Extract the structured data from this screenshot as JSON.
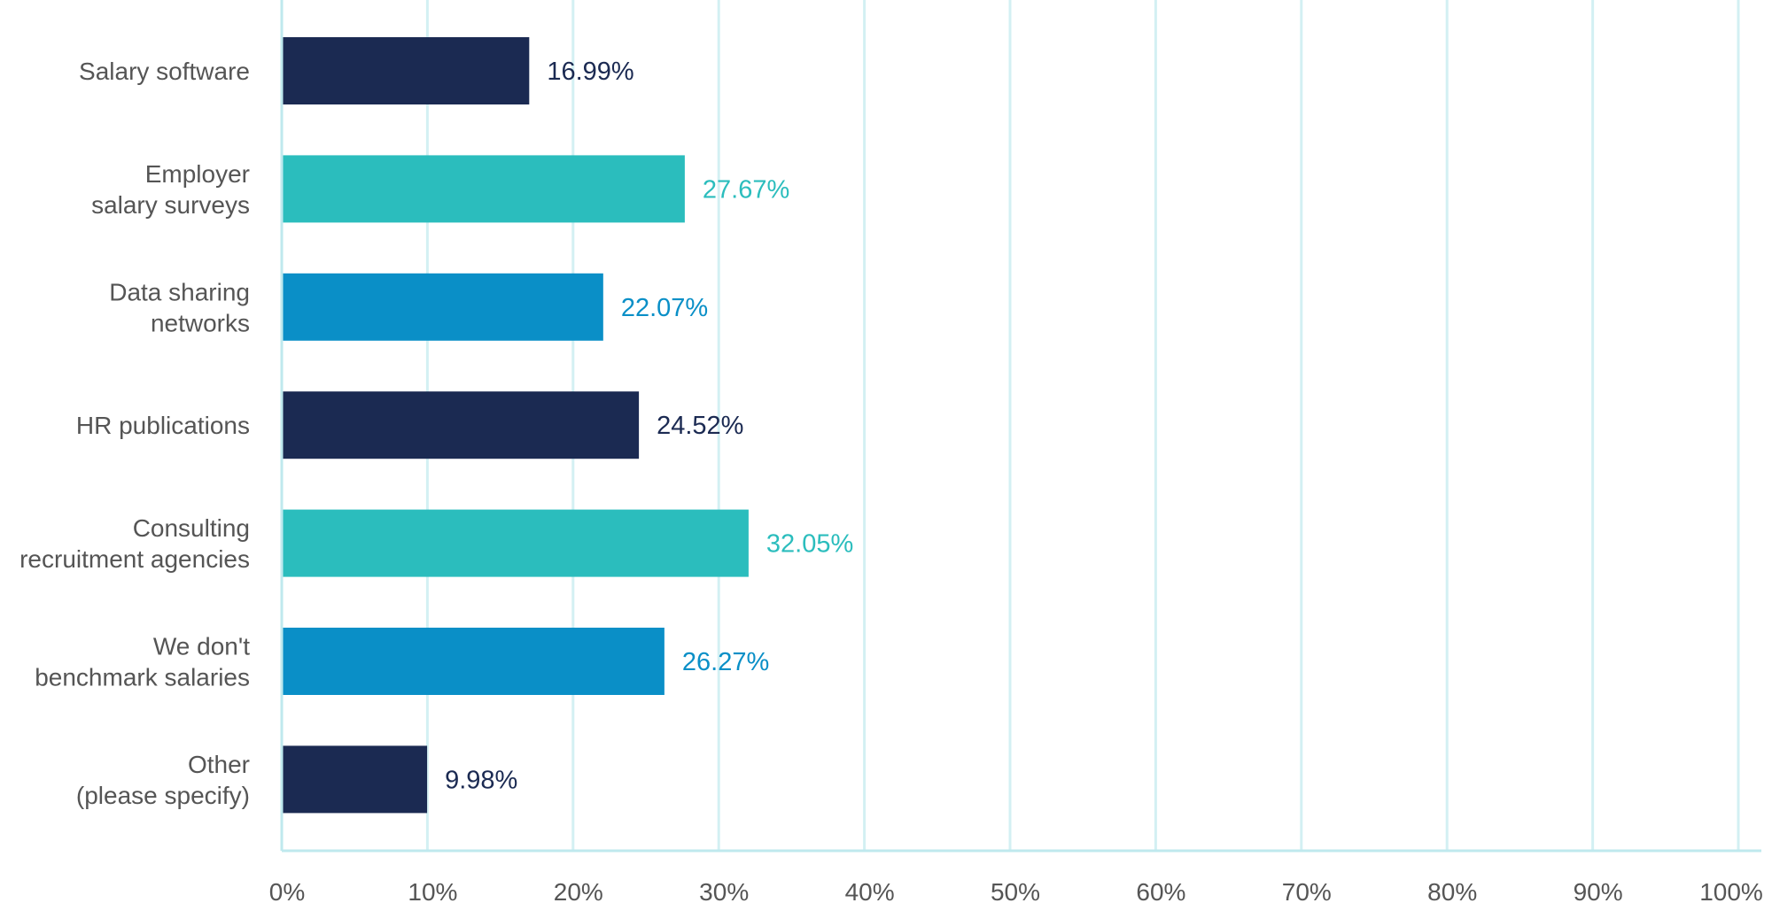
{
  "chart_data": {
    "type": "bar",
    "orientation": "horizontal",
    "categories": [
      [
        "Salary software"
      ],
      [
        "Employer",
        "salary surveys"
      ],
      [
        "Data sharing",
        "networks"
      ],
      [
        "HR publications"
      ],
      [
        "Consulting",
        "recruitment agencies"
      ],
      [
        "We don't",
        "benchmark salaries"
      ],
      [
        "Other",
        "(please specify)"
      ]
    ],
    "values": [
      16.99,
      27.67,
      22.07,
      24.52,
      32.05,
      26.27,
      9.98
    ],
    "value_labels": [
      "16.99%",
      "27.67%",
      "22.07%",
      "24.52%",
      "32.05%",
      "26.27%",
      "9.98%"
    ],
    "bar_colors": [
      "#1b2a52",
      "#2bbdbd",
      "#0a8fc7",
      "#1b2a52",
      "#2bbdbd",
      "#0a8fc7",
      "#1b2a52"
    ],
    "xlim": [
      0,
      100
    ],
    "x_ticks": [
      0,
      10,
      20,
      30,
      40,
      50,
      60,
      70,
      80,
      90,
      100
    ],
    "x_tick_labels": [
      "0%",
      "10%",
      "20%",
      "30%",
      "40%",
      "50%",
      "60%",
      "70%",
      "80%",
      "90%",
      "100%"
    ],
    "title": "",
    "xlabel": "",
    "ylabel": "",
    "grid": "vertical",
    "grid_color": "#d3f0f3",
    "axis_color": "#bfe9ee",
    "legend": "none"
  }
}
